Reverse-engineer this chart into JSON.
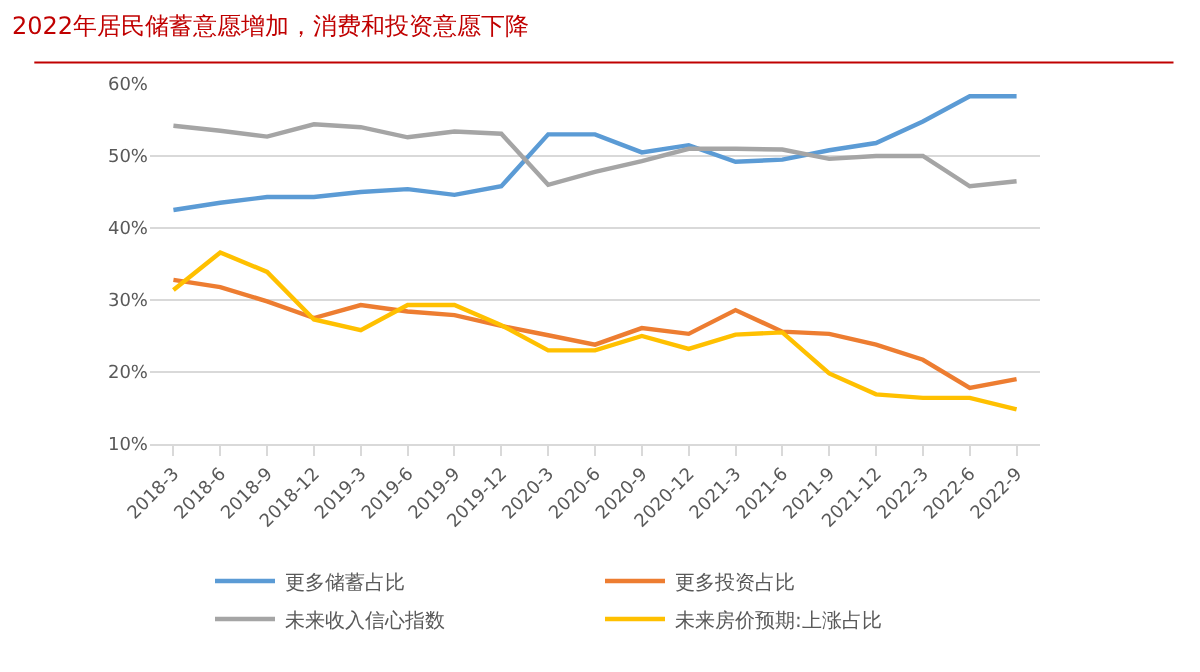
{
  "chart_data": {
    "type": "line",
    "title": "2022年居民储蓄意愿增加，消费和投资意愿下降",
    "categories": [
      "2018-3",
      "2018-6",
      "2018-9",
      "2018-12",
      "2019-3",
      "2019-6",
      "2019-9",
      "2019-12",
      "2020-3",
      "2020-6",
      "2020-9",
      "2020-12",
      "2021-3",
      "2021-6",
      "2021-9",
      "2021-12",
      "2022-3",
      "2022-6",
      "2022-9"
    ],
    "series": [
      {
        "name": "更多储蓄占比",
        "color": "#5b9bd5",
        "values": [
          42.5,
          43.5,
          44.3,
          44.3,
          45.0,
          45.4,
          44.6,
          45.8,
          53.0,
          53.0,
          50.5,
          51.5,
          49.2,
          49.5,
          50.8,
          51.8,
          54.8,
          58.3,
          58.3
        ]
      },
      {
        "name": "更多投资占比",
        "color": "#ed7d31",
        "values": [
          32.8,
          31.8,
          29.8,
          27.5,
          29.3,
          28.4,
          27.9,
          26.4,
          25.1,
          23.8,
          26.1,
          25.3,
          28.6,
          25.6,
          25.3,
          23.8,
          21.7,
          17.8,
          19.0
        ]
      },
      {
        "name": "未来收入信心指数",
        "color": "#a5a5a5",
        "values": [
          54.2,
          53.5,
          52.7,
          54.4,
          54.0,
          52.6,
          53.4,
          53.1,
          46.0,
          47.8,
          49.3,
          51.0,
          51.0,
          50.9,
          49.6,
          50.0,
          50.0,
          45.8,
          46.5
        ]
      },
      {
        "name": "未来房价预期:上涨占比",
        "color": "#ffc000",
        "values": [
          31.4,
          36.6,
          33.9,
          27.3,
          25.8,
          29.3,
          29.3,
          26.5,
          23.0,
          23.0,
          25.0,
          23.2,
          25.2,
          25.5,
          19.8,
          16.9,
          16.4,
          16.4,
          14.8
        ]
      }
    ],
    "ylim": [
      10,
      60
    ],
    "yticks": [
      {
        "value": 10,
        "label": "10%"
      },
      {
        "value": 20,
        "label": "20%"
      },
      {
        "value": 30,
        "label": "30%"
      },
      {
        "value": 40,
        "label": "40%"
      },
      {
        "value": 50,
        "label": "50%"
      },
      {
        "value": 60,
        "label": "60%"
      }
    ],
    "grid": "y",
    "legend": "bottom",
    "marker": "none",
    "line_style": "solid"
  }
}
